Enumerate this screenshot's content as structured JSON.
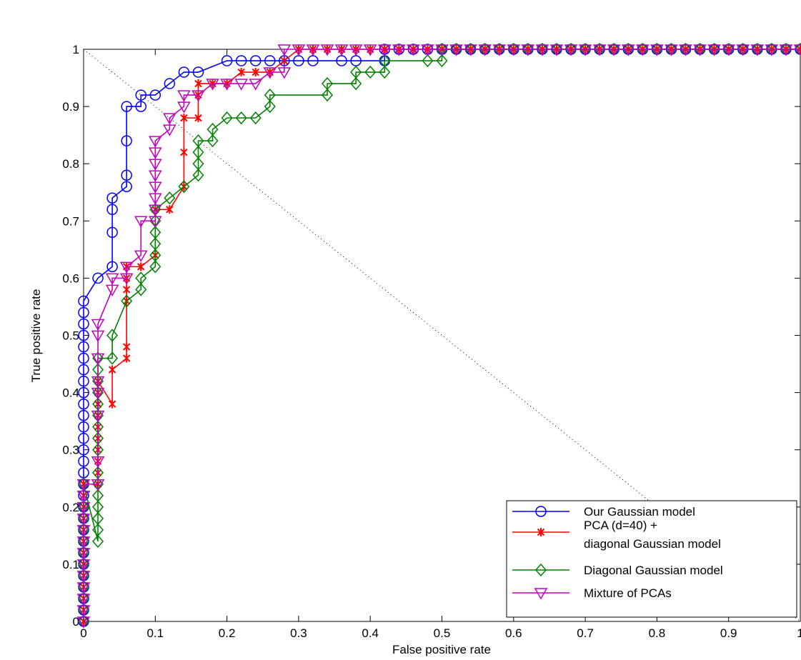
{
  "chart_data": {
    "type": "line",
    "xlabel": "False positive rate",
    "ylabel": "True positive rate",
    "xlim": [
      0,
      1
    ],
    "ylim": [
      0,
      1
    ],
    "xticks": [
      "0",
      "0.1",
      "0.2",
      "0.3",
      "0.4",
      "0.5",
      "0.6",
      "0.7",
      "0.8",
      "0.9",
      "1"
    ],
    "yticks": [
      "0",
      "0.1",
      "0.2",
      "0.3",
      "0.4",
      "0.5",
      "0.6",
      "0.7",
      "0.8",
      "0.9",
      "1"
    ],
    "grid": false,
    "legend_position": "bottom-right",
    "diagonal_reference": {
      "style": "dotted",
      "from": [
        0,
        1
      ],
      "to": [
        1,
        0
      ]
    },
    "series": [
      {
        "name": "Our Gaussian model",
        "color": "#0000ff",
        "marker": "circle",
        "x": [
          0,
          0,
          0,
          0,
          0,
          0,
          0,
          0,
          0,
          0,
          0,
          0,
          0,
          0,
          0,
          0,
          0,
          0,
          0,
          0,
          0,
          0,
          0,
          0,
          0,
          0,
          0,
          0,
          0,
          0.02,
          0.04,
          0.04,
          0.04,
          0.04,
          0.06,
          0.06,
          0.06,
          0.06,
          0.08,
          0.08,
          0.1,
          0.12,
          0.14,
          0.16,
          0.2,
          0.22,
          0.24,
          0.26,
          0.28,
          0.3,
          0.32,
          0.36,
          0.38,
          0.42,
          0.42,
          0.44,
          0.46,
          0.48,
          0.5,
          0.52,
          0.54,
          0.56,
          0.58,
          0.6,
          0.62,
          0.64,
          0.66,
          0.68,
          0.7,
          0.72,
          0.74,
          0.76,
          0.78,
          0.8,
          0.82,
          0.84,
          0.86,
          0.88,
          0.9,
          0.92,
          0.94,
          0.96,
          0.98,
          1.0
        ],
        "y": [
          0,
          0.02,
          0.04,
          0.06,
          0.08,
          0.1,
          0.12,
          0.14,
          0.16,
          0.18,
          0.2,
          0.22,
          0.24,
          0.26,
          0.28,
          0.3,
          0.32,
          0.34,
          0.36,
          0.38,
          0.4,
          0.42,
          0.44,
          0.46,
          0.48,
          0.5,
          0.52,
          0.54,
          0.56,
          0.6,
          0.62,
          0.68,
          0.72,
          0.74,
          0.76,
          0.78,
          0.84,
          0.9,
          0.9,
          0.92,
          0.92,
          0.94,
          0.96,
          0.96,
          0.98,
          0.98,
          0.98,
          0.98,
          0.98,
          0.98,
          0.98,
          0.98,
          0.98,
          0.98,
          1.0,
          1.0,
          1.0,
          1.0,
          1.0,
          1.0,
          1.0,
          1.0,
          1.0,
          1.0,
          1.0,
          1.0,
          1.0,
          1.0,
          1.0,
          1.0,
          1.0,
          1.0,
          1.0,
          1.0,
          1.0,
          1.0,
          1.0,
          1.0,
          1.0,
          1.0,
          1.0,
          1.0,
          1.0,
          1.0
        ]
      },
      {
        "name": "PCA (d=40) + diagonal Gaussian model",
        "color": "#ff0000",
        "marker": "asterisk",
        "x": [
          0,
          0,
          0,
          0,
          0,
          0,
          0,
          0,
          0,
          0,
          0,
          0,
          0,
          0.02,
          0.02,
          0.02,
          0.02,
          0.02,
          0.02,
          0.02,
          0.02,
          0.02,
          0.02,
          0.02,
          0.04,
          0.04,
          0.06,
          0.06,
          0.06,
          0.06,
          0.06,
          0.06,
          0.08,
          0.1,
          0.1,
          0.12,
          0.14,
          0.14,
          0.14,
          0.16,
          0.16,
          0.16,
          0.18,
          0.2,
          0.22,
          0.24,
          0.26,
          0.28,
          0.3,
          0.32,
          0.34,
          0.36,
          0.38,
          0.4,
          0.42,
          0.44,
          0.46,
          0.48,
          0.5,
          0.52,
          0.54,
          0.56,
          0.58,
          0.6,
          0.62,
          0.64,
          0.66,
          0.68,
          0.7,
          0.72,
          0.74,
          0.76,
          0.78,
          0.8,
          0.82,
          0.84,
          0.86,
          0.88,
          0.9,
          0.92,
          0.94,
          0.96,
          0.98,
          1.0
        ],
        "y": [
          0,
          0.02,
          0.04,
          0.06,
          0.08,
          0.1,
          0.12,
          0.14,
          0.16,
          0.18,
          0.2,
          0.22,
          0.24,
          0.24,
          0.26,
          0.28,
          0.3,
          0.32,
          0.34,
          0.36,
          0.38,
          0.38,
          0.4,
          0.42,
          0.38,
          0.44,
          0.46,
          0.48,
          0.56,
          0.58,
          0.6,
          0.62,
          0.62,
          0.64,
          0.72,
          0.72,
          0.76,
          0.82,
          0.88,
          0.88,
          0.92,
          0.94,
          0.94,
          0.94,
          0.96,
          0.96,
          0.96,
          0.98,
          1.0,
          1.0,
          1.0,
          1.0,
          1.0,
          1.0,
          1.0,
          1.0,
          1.0,
          1.0,
          1.0,
          1.0,
          1.0,
          1.0,
          1.0,
          1.0,
          1.0,
          1.0,
          1.0,
          1.0,
          1.0,
          1.0,
          1.0,
          1.0,
          1.0,
          1.0,
          1.0,
          1.0,
          1.0,
          1.0,
          1.0,
          1.0,
          1.0,
          1.0,
          1.0,
          1.0
        ]
      },
      {
        "name": "Diagonal Gaussian model",
        "color": "#008000",
        "marker": "diamond",
        "x": [
          0,
          0,
          0,
          0,
          0,
          0,
          0,
          0,
          0,
          0,
          0,
          0,
          0.02,
          0.02,
          0.02,
          0.02,
          0.02,
          0.02,
          0.02,
          0.02,
          0.02,
          0.02,
          0.02,
          0.02,
          0.02,
          0.02,
          0.02,
          0.02,
          0.04,
          0.04,
          0.06,
          0.08,
          0.08,
          0.1,
          0.1,
          0.1,
          0.1,
          0.1,
          0.1,
          0.12,
          0.14,
          0.16,
          0.16,
          0.16,
          0.16,
          0.18,
          0.18,
          0.2,
          0.22,
          0.24,
          0.26,
          0.26,
          0.34,
          0.34,
          0.38,
          0.38,
          0.4,
          0.42,
          0.42,
          0.48,
          0.5,
          0.5,
          0.52,
          0.54,
          0.56,
          0.58,
          0.6,
          0.62,
          0.64,
          0.66,
          0.68,
          0.7,
          0.72,
          0.74,
          0.76,
          0.78,
          0.8,
          0.82,
          0.84,
          0.86,
          0.88,
          0.9,
          0.92,
          0.94,
          0.96,
          0.98,
          1.0
        ],
        "y": [
          0,
          0.02,
          0.04,
          0.06,
          0.08,
          0.1,
          0.12,
          0.14,
          0.16,
          0.18,
          0.2,
          0.24,
          0.14,
          0.16,
          0.18,
          0.2,
          0.22,
          0.24,
          0.26,
          0.3,
          0.32,
          0.34,
          0.36,
          0.38,
          0.4,
          0.42,
          0.44,
          0.46,
          0.46,
          0.5,
          0.56,
          0.58,
          0.6,
          0.62,
          0.64,
          0.66,
          0.68,
          0.7,
          0.72,
          0.74,
          0.76,
          0.78,
          0.8,
          0.82,
          0.84,
          0.84,
          0.86,
          0.88,
          0.88,
          0.88,
          0.9,
          0.92,
          0.92,
          0.94,
          0.94,
          0.96,
          0.96,
          0.96,
          0.98,
          0.98,
          0.98,
          1.0,
          1.0,
          1.0,
          1.0,
          1.0,
          1.0,
          1.0,
          1.0,
          1.0,
          1.0,
          1.0,
          1.0,
          1.0,
          1.0,
          1.0,
          1.0,
          1.0,
          1.0,
          1.0,
          1.0,
          1.0,
          1.0,
          1.0,
          1.0,
          1.0,
          1.0
        ]
      },
      {
        "name": "Mixture of PCAs",
        "color": "#bf00bf",
        "marker": "triangle-down",
        "x": [
          0,
          0,
          0,
          0,
          0,
          0,
          0,
          0,
          0,
          0,
          0,
          0,
          0,
          0.02,
          0.02,
          0.02,
          0.02,
          0.02,
          0.02,
          0.02,
          0.02,
          0.04,
          0.04,
          0.06,
          0.06,
          0.08,
          0.08,
          0.1,
          0.1,
          0.1,
          0.1,
          0.1,
          0.1,
          0.1,
          0.1,
          0.12,
          0.12,
          0.14,
          0.14,
          0.16,
          0.18,
          0.2,
          0.22,
          0.24,
          0.26,
          0.28,
          0.28,
          0.3,
          0.32,
          0.34,
          0.36,
          0.38,
          0.4,
          0.42,
          0.44,
          0.46,
          0.48,
          0.5,
          0.52,
          0.54,
          0.56,
          0.58,
          0.6,
          0.62,
          0.64,
          0.66,
          0.68,
          0.7,
          0.72,
          0.74,
          0.76,
          0.78,
          0.8,
          0.82,
          0.84,
          0.86,
          0.88,
          0.9,
          0.92,
          0.94,
          0.96,
          0.98,
          1.0
        ],
        "y": [
          0,
          0.02,
          0.04,
          0.06,
          0.08,
          0.1,
          0.12,
          0.14,
          0.16,
          0.18,
          0.2,
          0.22,
          0.24,
          0.24,
          0.28,
          0.36,
          0.4,
          0.42,
          0.46,
          0.5,
          0.52,
          0.58,
          0.6,
          0.6,
          0.62,
          0.64,
          0.7,
          0.7,
          0.72,
          0.74,
          0.76,
          0.78,
          0.8,
          0.82,
          0.84,
          0.86,
          0.88,
          0.9,
          0.92,
          0.92,
          0.94,
          0.94,
          0.94,
          0.94,
          0.96,
          0.96,
          1.0,
          1.0,
          1.0,
          1.0,
          1.0,
          1.0,
          1.0,
          1.0,
          1.0,
          1.0,
          1.0,
          1.0,
          1.0,
          1.0,
          1.0,
          1.0,
          1.0,
          1.0,
          1.0,
          1.0,
          1.0,
          1.0,
          1.0,
          1.0,
          1.0,
          1.0,
          1.0,
          1.0,
          1.0,
          1.0,
          1.0,
          1.0,
          1.0,
          1.0,
          1.0,
          1.0,
          1.0
        ]
      }
    ],
    "legend_labels": [
      [
        "Our Gaussian model"
      ],
      [
        "PCA (d=40) +",
        "diagonal Gaussian model"
      ],
      [
        "Diagonal Gaussian model"
      ],
      [
        "Mixture of PCAs"
      ]
    ]
  }
}
